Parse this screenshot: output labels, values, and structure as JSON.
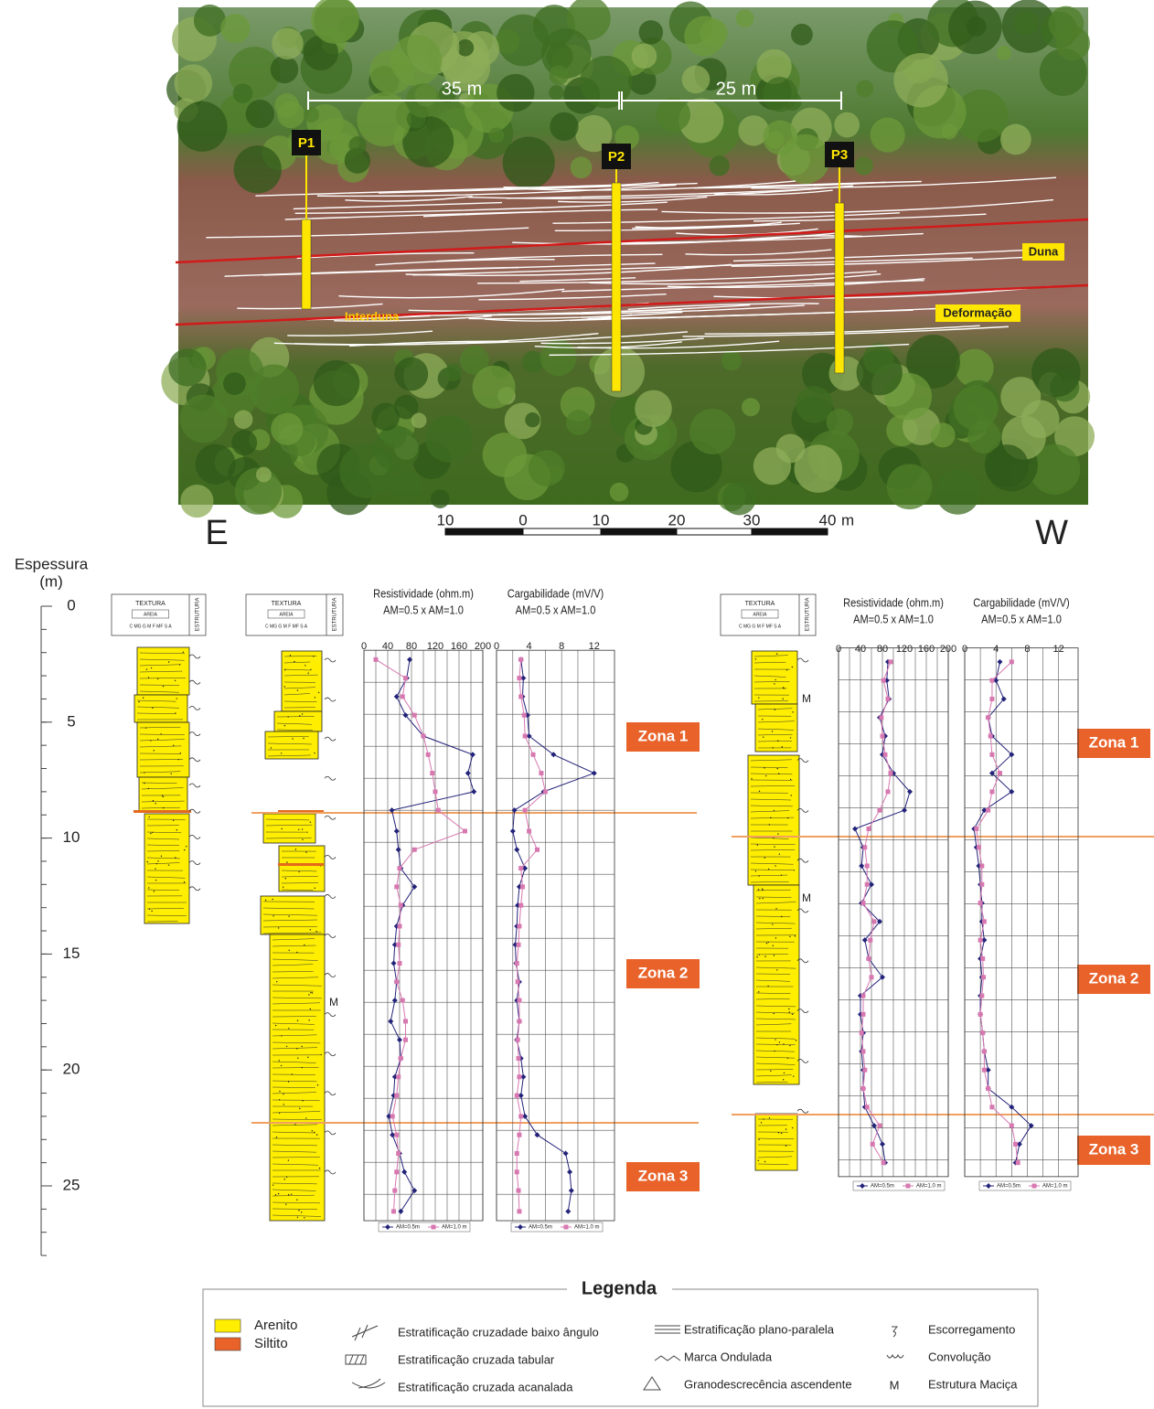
{
  "photo": {
    "profiles": [
      "P1",
      "P2",
      "P3"
    ],
    "distances": [
      "35 m",
      "25 m"
    ],
    "units": {
      "duna": "Duna",
      "interduna": "Interduna",
      "deformacao": "Deformação"
    }
  },
  "scale_bar": {
    "labels": [
      10,
      0,
      10,
      20,
      30,
      40
    ],
    "unit": "m"
  },
  "directions": [
    "E",
    "W"
  ],
  "depth_axis": {
    "title": [
      "Espessura",
      "(m)"
    ],
    "lim": [
      0,
      28
    ],
    "ticks": [
      0,
      5,
      10,
      15,
      20,
      25
    ]
  },
  "columns": [
    {
      "texture": "TEXTURA",
      "sand": "AREIA",
      "grains": "C MG G M F MF S A",
      "structure": "ESTRUTURA"
    },
    {
      "texture": "TEXTURA",
      "sand": "AREIA",
      "grains": "C MG G M F MF S A",
      "structure": "ESTRUTURA",
      "marks": [
        "M"
      ]
    },
    {
      "texture": "TEXTURA",
      "sand": "AREIA",
      "grains": "C MG G M F MF S A",
      "structure": "ESTRUTURA",
      "marks": [
        "M",
        "M"
      ]
    }
  ],
  "zones": [
    [
      "Zona 1",
      "Zona 2",
      "Zona 3"
    ],
    [
      "Zona 1",
      "Zona 2",
      "Zona 3"
    ]
  ],
  "chart_data": [
    {
      "type": "line",
      "title": "Resistividade (ohm.m)",
      "subtitle": "AM=0.5 x AM=1.0",
      "xlim": [
        0,
        200
      ],
      "xticks": [
        0,
        40,
        80,
        120,
        160,
        200
      ],
      "ylim": [
        1.9,
        26.5
      ],
      "depth": [
        2.3,
        3.1,
        3.9,
        4.7,
        5.6,
        6.4,
        7.2,
        8.0,
        8.8,
        9.7,
        10.5,
        11.3,
        12.1,
        12.9,
        13.8,
        14.6,
        15.4,
        16.2,
        17.0,
        17.9,
        18.7,
        19.5,
        20.3,
        21.1,
        22.0,
        22.8,
        23.6,
        24.4,
        25.2,
        26.1
      ],
      "series": [
        {
          "name": "AM=0.5m",
          "color": "#23237a",
          "marker": "diamond",
          "values": [
            77,
            72,
            55,
            70,
            100,
            183,
            175,
            185,
            47,
            55,
            58,
            62,
            85,
            65,
            55,
            52,
            50,
            55,
            52,
            45,
            60,
            62,
            52,
            50,
            42,
            48,
            60,
            68,
            85,
            62
          ]
        },
        {
          "name": "AM=1.0 m",
          "color": "#d778b0",
          "marker": "square",
          "values": [
            20,
            70,
            65,
            85,
            100,
            108,
            115,
            120,
            125,
            170,
            85,
            60,
            55,
            62,
            60,
            58,
            60,
            55,
            65,
            70,
            70,
            62,
            58,
            55,
            48,
            55,
            58,
            55,
            52,
            50
          ]
        }
      ]
    },
    {
      "type": "line",
      "title": "Cargabilidade (mV/V)",
      "subtitle": "AM=0.5 x AM=1.0",
      "xlim": [
        0,
        14.5
      ],
      "xticks": [
        0,
        4,
        8,
        12
      ],
      "ylim": [
        1.9,
        26.5
      ],
      "depth": [
        2.3,
        3.1,
        3.9,
        4.7,
        5.6,
        6.4,
        7.2,
        8.0,
        8.8,
        9.7,
        10.5,
        11.3,
        12.1,
        12.9,
        13.8,
        14.6,
        15.4,
        16.2,
        17.0,
        17.9,
        18.7,
        19.5,
        20.3,
        21.1,
        22.0,
        22.8,
        23.6,
        24.4,
        25.2,
        26.1
      ],
      "series": [
        {
          "name": "AM=0.5m",
          "color": "#23237a",
          "marker": "diamond",
          "values": [
            3.0,
            3.3,
            3.2,
            3.8,
            4.0,
            7.0,
            12.0,
            5.8,
            2.2,
            2.0,
            2.5,
            3.5,
            2.8,
            2.6,
            2.5,
            2.3,
            2.4,
            2.8,
            2.5,
            2.8,
            2.5,
            3.0,
            3.3,
            3.0,
            3.5,
            5.0,
            8.5,
            9.0,
            9.2,
            8.8
          ]
        },
        {
          "name": "AM=1.0 m",
          "color": "#d778b0",
          "marker": "square",
          "values": [
            3.0,
            2.8,
            3.0,
            3.4,
            3.5,
            4.5,
            5.5,
            6.0,
            3.5,
            4.0,
            5.0,
            3.0,
            3.2,
            3.0,
            2.8,
            2.7,
            2.5,
            2.6,
            2.8,
            2.8,
            2.6,
            2.7,
            2.8,
            2.5,
            3.0,
            2.8,
            2.5,
            2.5,
            2.7,
            2.8
          ]
        }
      ]
    },
    {
      "type": "line",
      "title": "Resistividade (ohm.m)",
      "subtitle": "AM=0.5 x AM=1.0",
      "xlim": [
        0,
        200
      ],
      "xticks": [
        0,
        40,
        80,
        120,
        160,
        200
      ],
      "ylim": [
        1.8,
        24.6
      ],
      "depth": [
        2.4,
        3.2,
        4.0,
        4.8,
        5.6,
        6.4,
        7.2,
        8.0,
        8.8,
        9.6,
        10.4,
        11.2,
        12.0,
        12.8,
        13.6,
        14.4,
        15.2,
        16.0,
        16.8,
        17.6,
        18.4,
        19.2,
        20.0,
        20.8,
        21.6,
        22.4,
        23.2,
        24.0
      ],
      "series": [
        {
          "name": "AM=0.5m",
          "color": "#23237a",
          "marker": "diamond",
          "values": [
            90,
            88,
            92,
            75,
            85,
            80,
            100,
            130,
            120,
            30,
            45,
            42,
            60,
            42,
            75,
            48,
            55,
            80,
            40,
            40,
            45,
            42,
            45,
            45,
            48,
            65,
            80,
            85
          ]
        },
        {
          "name": "AM=1.0 m",
          "color": "#d778b0",
          "marker": "square",
          "values": [
            95,
            82,
            90,
            78,
            80,
            85,
            95,
            90,
            75,
            55,
            48,
            52,
            52,
            45,
            65,
            58,
            55,
            60,
            45,
            45,
            42,
            45,
            48,
            45,
            52,
            75,
            62,
            82
          ]
        }
      ]
    },
    {
      "type": "line",
      "title": "Cargabilidade (mV/V)",
      "subtitle": "AM=0.5 x AM=1.0",
      "xlim": [
        0,
        14.5
      ],
      "xticks": [
        0,
        4,
        8,
        12
      ],
      "ylim": [
        1.8,
        24.6
      ],
      "depth": [
        2.4,
        3.2,
        4.0,
        4.8,
        5.6,
        6.4,
        7.2,
        8.0,
        8.8,
        9.6,
        10.4,
        11.2,
        12.0,
        12.8,
        13.6,
        14.4,
        15.2,
        16.0,
        16.8,
        17.6,
        18.4,
        19.2,
        20.0,
        20.8,
        21.6,
        22.4,
        23.2,
        24.0
      ],
      "series": [
        {
          "name": "AM=0.5m",
          "color": "#23237a",
          "marker": "diamond",
          "values": [
            4.5,
            4.0,
            5.0,
            3.0,
            3.5,
            6.0,
            3.5,
            6.0,
            2.5,
            1.2,
            1.5,
            1.8,
            2.0,
            2.2,
            2.2,
            2.5,
            2.0,
            2.2,
            2.0,
            2.0,
            2.3,
            2.5,
            3.0,
            3.0,
            6.0,
            8.5,
            7.0,
            6.5
          ]
        },
        {
          "name": "AM=1.0 m",
          "color": "#d778b0",
          "marker": "square",
          "values": [
            6.0,
            3.5,
            3.5,
            3.0,
            3.3,
            3.5,
            4.5,
            3.5,
            3.0,
            1.5,
            1.8,
            2.2,
            2.2,
            2.0,
            2.5,
            2.0,
            2.3,
            2.4,
            2.2,
            2.0,
            2.3,
            2.5,
            2.5,
            3.0,
            3.5,
            6.0,
            6.5,
            6.8
          ]
        }
      ]
    }
  ],
  "legend": {
    "title": "Legenda",
    "lithology": [
      "Arenito",
      "Siltito"
    ],
    "structures": [
      "Estratificação cruzadade baixo ângulo",
      "Estratificação cruzada tabular",
      "Estratificação cruzada acanalada",
      "Estratificação plano-paralela",
      "Marca Ondulada",
      "Granodescrecência ascendente",
      "Escorregamento",
      "Convolução",
      "Estrutura Maciça"
    ],
    "massive_symbol": "M"
  }
}
